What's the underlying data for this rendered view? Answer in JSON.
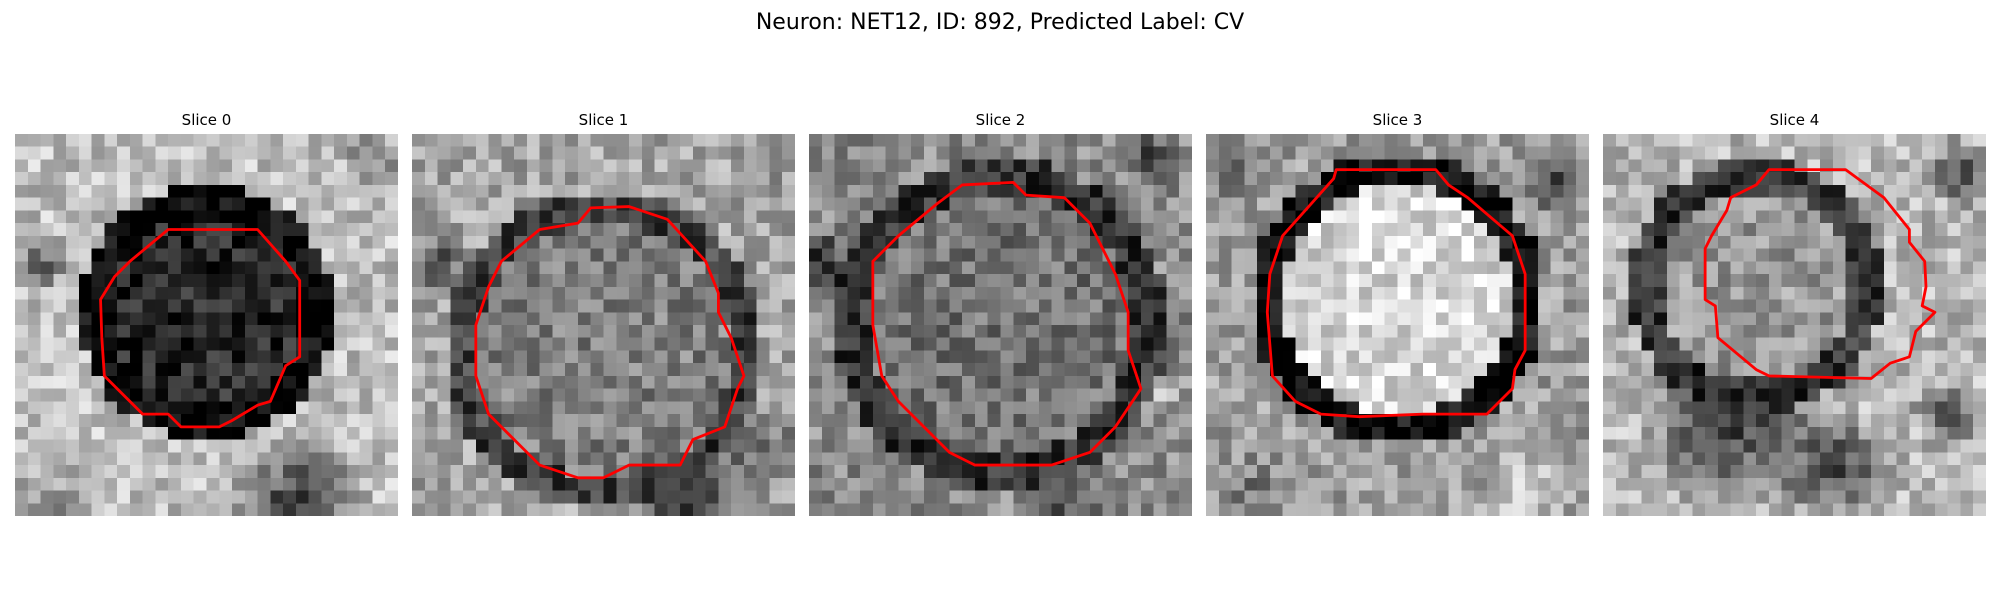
{
  "figure": {
    "title": "Neuron: NET12, ID: 892, Predicted Label: CV"
  },
  "panels": [
    {
      "title": "Slice 0"
    },
    {
      "title": "Slice 1"
    },
    {
      "title": "Slice 2"
    },
    {
      "title": "Slice 3"
    },
    {
      "title": "Slice 4"
    }
  ],
  "colors": {
    "contour": "#ff0000",
    "colormap": "grayscale"
  }
}
